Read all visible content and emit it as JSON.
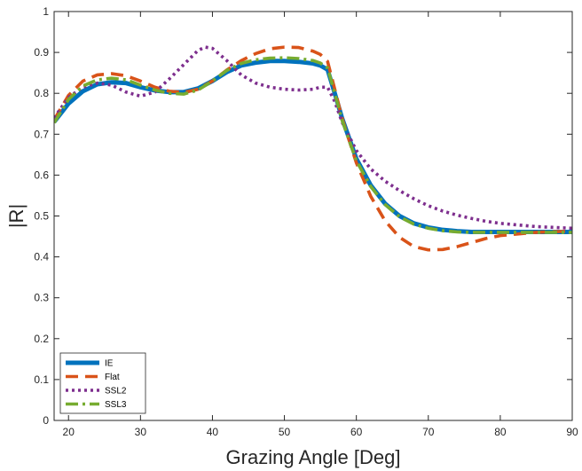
{
  "chart_data": {
    "type": "line",
    "title": "",
    "xlabel": "Grazing Angle [Deg]",
    "ylabel": "|R|",
    "xlim": [
      18,
      90
    ],
    "ylim": [
      0,
      1
    ],
    "xticks": [
      20,
      30,
      40,
      50,
      60,
      70,
      80,
      90
    ],
    "yticks": [
      0,
      0.1,
      0.2,
      0.3,
      0.4,
      0.5,
      0.6,
      0.7,
      0.8,
      0.9,
      1
    ],
    "grid": false,
    "legend_position": "bottom-left",
    "series": [
      {
        "name": "IE",
        "color": "#0072BD",
        "style": "solid",
        "x": [
          18,
          20,
          22,
          24,
          26,
          28,
          30,
          32,
          34,
          36,
          38,
          40,
          42,
          44,
          46,
          48,
          50,
          52,
          54,
          55,
          56,
          57,
          58,
          60,
          62,
          64,
          66,
          68,
          70,
          72,
          74,
          76,
          78,
          80,
          85,
          90
        ],
        "y": [
          0.73,
          0.775,
          0.805,
          0.822,
          0.827,
          0.825,
          0.815,
          0.807,
          0.803,
          0.803,
          0.812,
          0.83,
          0.852,
          0.868,
          0.875,
          0.879,
          0.879,
          0.877,
          0.873,
          0.868,
          0.858,
          0.8,
          0.74,
          0.64,
          0.575,
          0.53,
          0.5,
          0.482,
          0.472,
          0.466,
          0.463,
          0.461,
          0.461,
          0.461,
          0.461,
          0.461
        ]
      },
      {
        "name": "Flat",
        "color": "#D95319",
        "style": "dashed",
        "x": [
          18,
          20,
          22,
          24,
          26,
          28,
          30,
          32,
          34,
          36,
          38,
          40,
          42,
          44,
          46,
          48,
          50,
          52,
          54,
          55,
          56,
          57,
          58,
          60,
          62,
          64,
          66,
          68,
          70,
          72,
          74,
          76,
          78,
          80,
          85,
          90
        ],
        "y": [
          0.735,
          0.795,
          0.83,
          0.845,
          0.848,
          0.843,
          0.83,
          0.815,
          0.805,
          0.802,
          0.81,
          0.83,
          0.857,
          0.88,
          0.897,
          0.909,
          0.913,
          0.912,
          0.903,
          0.895,
          0.878,
          0.81,
          0.74,
          0.63,
          0.548,
          0.488,
          0.448,
          0.425,
          0.417,
          0.418,
          0.425,
          0.435,
          0.445,
          0.452,
          0.46,
          0.463
        ]
      },
      {
        "name": "SSL2",
        "color": "#7E2F8E",
        "style": "dotted",
        "x": [
          18,
          20,
          22,
          24,
          26,
          28,
          30,
          32,
          34,
          36,
          38,
          39,
          40,
          42,
          44,
          46,
          48,
          50,
          52,
          54,
          55,
          56,
          57,
          58,
          60,
          62,
          64,
          66,
          68,
          70,
          72,
          74,
          76,
          78,
          80,
          85,
          90
        ],
        "y": [
          0.74,
          0.79,
          0.815,
          0.825,
          0.82,
          0.803,
          0.793,
          0.803,
          0.835,
          0.87,
          0.905,
          0.913,
          0.91,
          0.88,
          0.845,
          0.825,
          0.815,
          0.81,
          0.808,
          0.81,
          0.815,
          0.815,
          0.78,
          0.73,
          0.66,
          0.615,
          0.585,
          0.562,
          0.542,
          0.525,
          0.512,
          0.502,
          0.494,
          0.487,
          0.482,
          0.474,
          0.47
        ]
      },
      {
        "name": "SSL3",
        "color": "#77AC30",
        "style": "dashdot",
        "x": [
          18,
          20,
          22,
          24,
          26,
          28,
          30,
          32,
          34,
          36,
          38,
          40,
          42,
          44,
          46,
          48,
          50,
          52,
          54,
          55,
          56,
          57,
          58,
          60,
          62,
          64,
          66,
          68,
          70,
          72,
          74,
          76,
          78,
          80,
          85,
          90
        ],
        "y": [
          0.728,
          0.785,
          0.818,
          0.833,
          0.837,
          0.833,
          0.82,
          0.808,
          0.8,
          0.798,
          0.808,
          0.83,
          0.856,
          0.873,
          0.882,
          0.886,
          0.887,
          0.885,
          0.88,
          0.874,
          0.862,
          0.8,
          0.735,
          0.635,
          0.572,
          0.528,
          0.498,
          0.48,
          0.47,
          0.464,
          0.461,
          0.46,
          0.46,
          0.46,
          0.46,
          0.46
        ]
      }
    ]
  }
}
